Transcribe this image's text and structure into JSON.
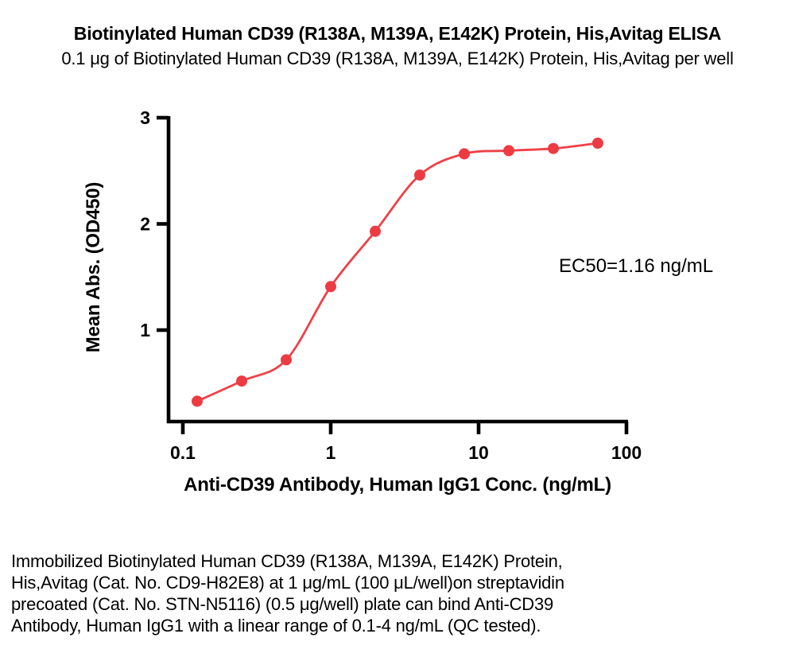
{
  "figure": {
    "title": "Biotinylated Human CD39 (R138A, M139A, E142K) Protein, His,Avitag ELISA",
    "subtitle": "0.1 μg of Biotinylated Human CD39 (R138A, M139A, E142K) Protein, His,Avitag per well",
    "description_lines": [
      "Immobilized Biotinylated Human CD39 (R138A, M139A, E142K) Protein,",
      "His,Avitag (Cat. No. CD9-H82E8) at 1 μg/mL (100 μL/well)on streptavidin",
      "precoated (Cat. No. STN-N5116) (0.5 μg/well) plate can bind Anti-CD39",
      "Antibody, Human IgG1 with a linear range of 0.1-4 ng/mL (QC tested)."
    ]
  },
  "chart_data": {
    "type": "scatter",
    "curve_fit": "4PL sigmoidal dose-response",
    "x_scale": "log10",
    "x": [
      0.125,
      0.25,
      0.5,
      1,
      2,
      4,
      8,
      16,
      32,
      64
    ],
    "series": [
      {
        "name": "Anti-CD39 Antibody, Human IgG1",
        "values": [
          0.33,
          0.52,
          0.72,
          1.41,
          1.93,
          2.46,
          2.66,
          2.69,
          2.71,
          2.76
        ]
      }
    ],
    "title": "Biotinylated Human CD39 (R138A, M139A, E142K) Protein, His,Avitag ELISA",
    "xlabel": "Anti-CD39 Antibody, Human IgG1 Conc. (ng/mL)",
    "ylabel": "Mean Abs. (OD450)",
    "x_ticks": [
      0.1,
      1,
      10,
      100
    ],
    "x_tick_labels": [
      "0.1",
      "1",
      "10",
      "100"
    ],
    "y_ticks": [
      1,
      2,
      3
    ],
    "y_tick_labels": [
      "1",
      "2",
      "3"
    ],
    "xlim": [
      0.08,
      102
    ],
    "ylim": [
      0.14,
      3.0
    ],
    "annotation": "EC50=1.16 ng/mL",
    "grid": false,
    "legend": "none",
    "colors": {
      "series": "#ed3b43",
      "curve": "#ee4149",
      "axis": "#000000",
      "text": "#000000"
    }
  }
}
